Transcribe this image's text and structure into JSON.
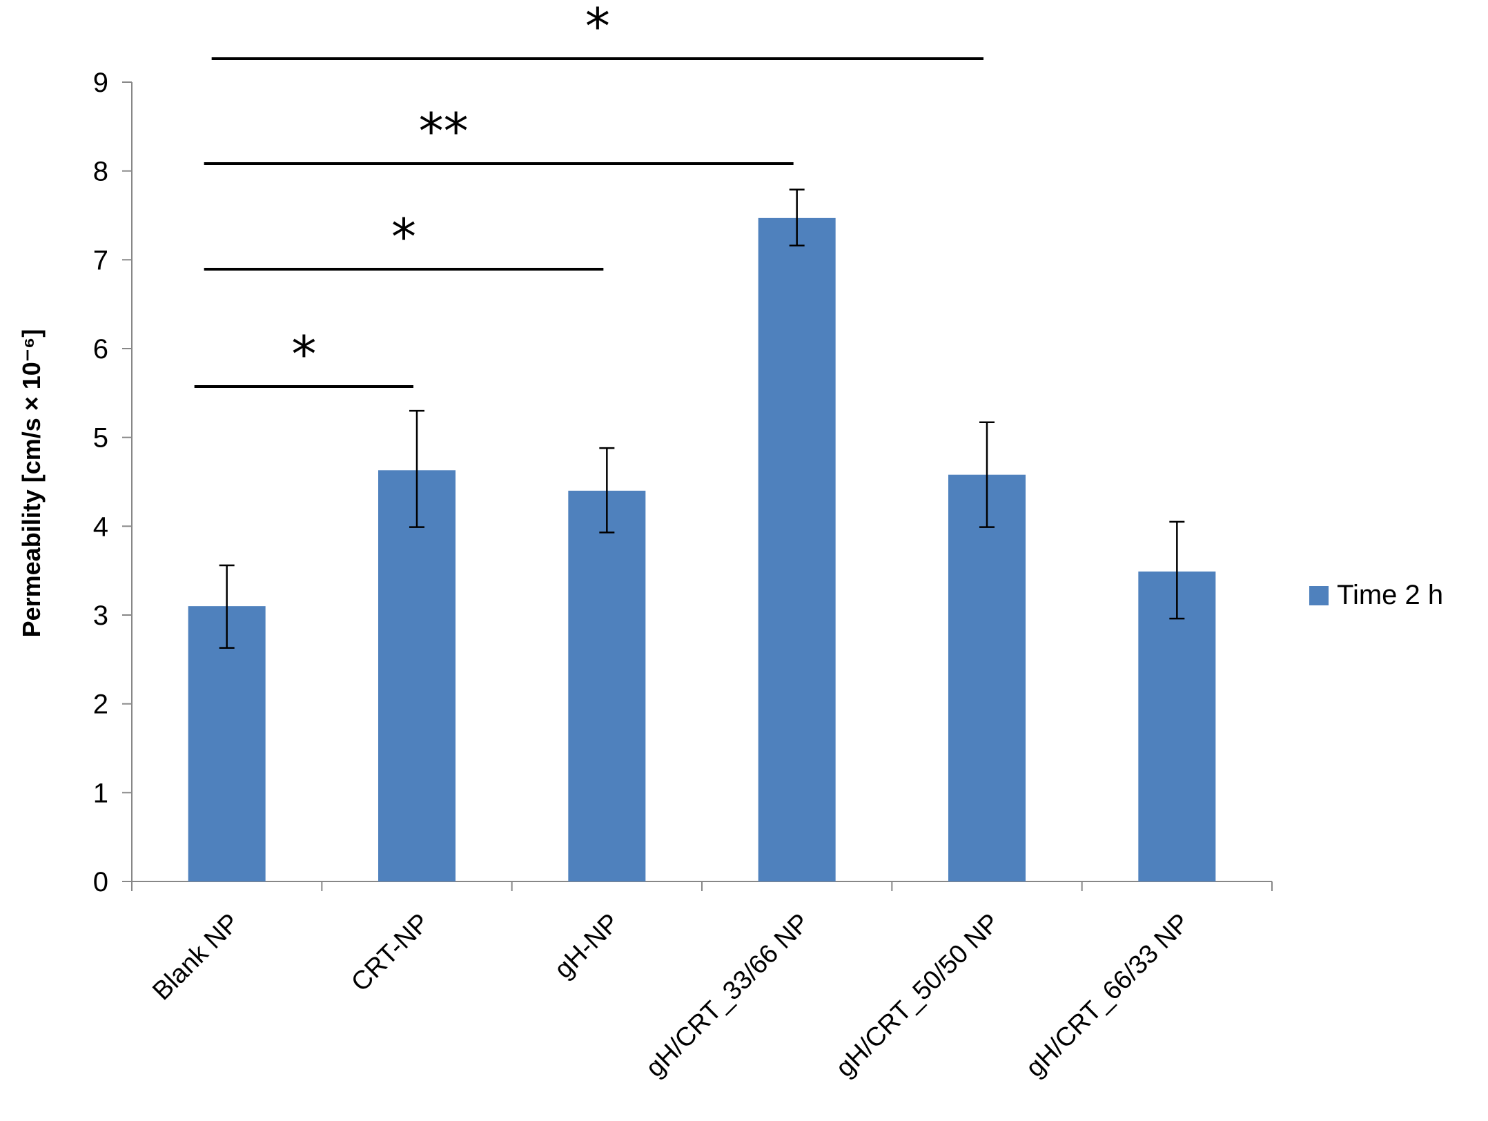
{
  "chart_data": {
    "type": "bar",
    "categories": [
      "Blank NP",
      "CRT-NP",
      "gH-NP",
      "gH/CRT_33/66 NP",
      "gH/CRT_50/50 NP",
      "gH/CRT_66/33 NP"
    ],
    "series": [
      {
        "name": "Time 2 h",
        "values": [
          3.1,
          4.63,
          4.4,
          7.47,
          4.58,
          3.49
        ],
        "error_low": [
          2.63,
          3.99,
          3.93,
          7.16,
          3.99,
          2.96
        ],
        "error_high": [
          3.56,
          5.3,
          4.88,
          7.79,
          5.17,
          4.05
        ],
        "color": "#4f81bd"
      }
    ],
    "ylabel": "Permeability [cm/s × 10⁻⁶]",
    "ylim": [
      0,
      9
    ],
    "yticks": [
      0,
      1,
      2,
      3,
      4,
      5,
      6,
      7,
      8,
      9
    ],
    "grid": false,
    "legend": "right",
    "significance": [
      {
        "from": "Blank NP",
        "to": "CRT-NP",
        "label": "*"
      },
      {
        "from": "Blank NP",
        "to": "gH-NP",
        "label": "*"
      },
      {
        "from": "Blank NP",
        "to": "gH/CRT_33/66 NP",
        "label": "**"
      },
      {
        "from": "Blank NP",
        "to": "gH/CRT_50/50 NP",
        "label": "*"
      }
    ]
  }
}
